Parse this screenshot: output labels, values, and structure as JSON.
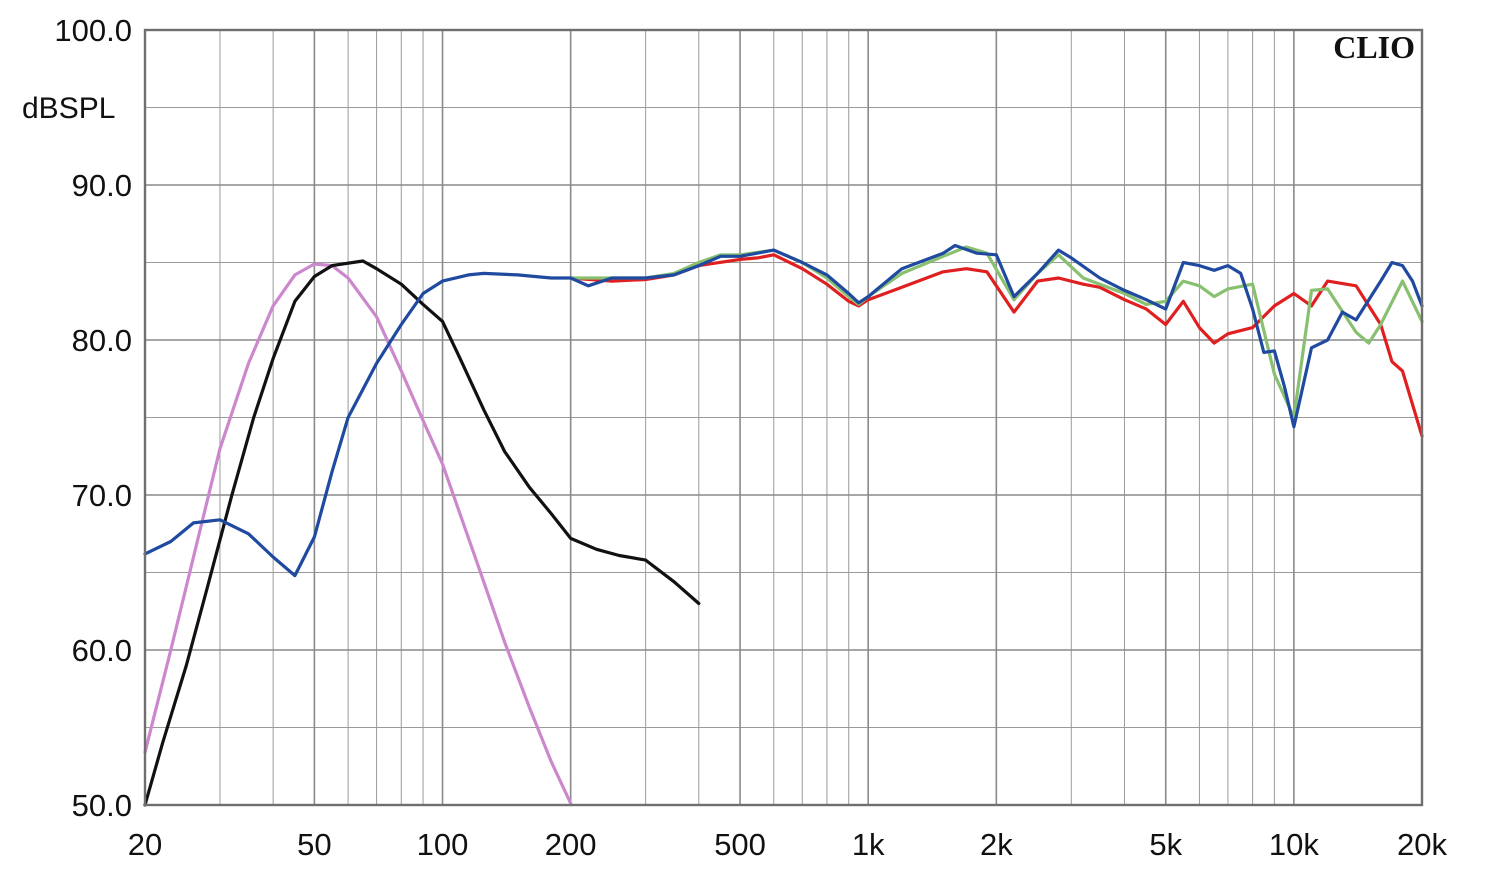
{
  "chart_data": {
    "type": "line",
    "brand": "CLIO",
    "ylabel": "dBSPL",
    "xlabel": "",
    "x_scale": "log",
    "xlim": [
      20,
      20000
    ],
    "ylim": [
      50,
      100
    ],
    "grid": true,
    "x_ticks": [
      {
        "value": 20,
        "label": "20"
      },
      {
        "value": 50,
        "label": "50"
      },
      {
        "value": 100,
        "label": "100"
      },
      {
        "value": 200,
        "label": "200"
      },
      {
        "value": 500,
        "label": "500"
      },
      {
        "value": 1000,
        "label": "1k"
      },
      {
        "value": 2000,
        "label": "2k"
      },
      {
        "value": 5000,
        "label": "5k"
      },
      {
        "value": 10000,
        "label": "10k"
      },
      {
        "value": 20000,
        "label": "20k"
      }
    ],
    "y_ticks": [
      {
        "value": 100,
        "label": "100.0"
      },
      {
        "value": 90,
        "label": "90.0"
      },
      {
        "value": 80,
        "label": "80.0"
      },
      {
        "value": 70,
        "label": "70.0"
      },
      {
        "value": 60,
        "label": "60.0"
      },
      {
        "value": 50,
        "label": "50.0"
      }
    ],
    "series": [
      {
        "color": "#cc88cc",
        "points": [
          [
            20,
            53.4
          ],
          [
            23,
            60
          ],
          [
            26,
            66
          ],
          [
            30,
            73
          ],
          [
            35,
            78.5
          ],
          [
            40,
            82.2
          ],
          [
            45,
            84.2
          ],
          [
            50,
            84.9
          ],
          [
            55,
            84.8
          ],
          [
            60,
            84
          ],
          [
            70,
            81.5
          ],
          [
            80,
            78
          ],
          [
            90,
            74.8
          ],
          [
            100,
            72
          ],
          [
            120,
            65.8
          ],
          [
            140,
            60.5
          ],
          [
            160,
            56.3
          ],
          [
            180,
            52.8
          ],
          [
            200,
            50.1
          ]
        ]
      },
      {
        "color": "#111111",
        "points": [
          [
            20,
            50
          ],
          [
            22,
            54
          ],
          [
            25,
            59
          ],
          [
            28,
            64
          ],
          [
            32,
            70
          ],
          [
            36,
            75
          ],
          [
            40,
            78.8
          ],
          [
            45,
            82.5
          ],
          [
            50,
            84.1
          ],
          [
            55,
            84.8
          ],
          [
            65,
            85.1
          ],
          [
            70,
            84.6
          ],
          [
            80,
            83.6
          ],
          [
            90,
            82.3
          ],
          [
            100,
            81.2
          ],
          [
            110,
            78.8
          ],
          [
            125,
            75.5
          ],
          [
            140,
            72.8
          ],
          [
            160,
            70.5
          ],
          [
            180,
            68.8
          ],
          [
            200,
            67.2
          ],
          [
            230,
            66.5
          ],
          [
            260,
            66.1
          ],
          [
            300,
            65.8
          ],
          [
            350,
            64.4
          ],
          [
            400,
            63
          ]
        ]
      },
      {
        "color": "#e02020",
        "points": [
          [
            200,
            84
          ],
          [
            250,
            83.8
          ],
          [
            300,
            83.9
          ],
          [
            350,
            84.2
          ],
          [
            400,
            84.8
          ],
          [
            500,
            85.2
          ],
          [
            550,
            85.3
          ],
          [
            600,
            85.5
          ],
          [
            700,
            84.6
          ],
          [
            800,
            83.6
          ],
          [
            900,
            82.5
          ],
          [
            950,
            82.2
          ],
          [
            1000,
            82.6
          ],
          [
            1200,
            83.4
          ],
          [
            1500,
            84.4
          ],
          [
            1700,
            84.6
          ],
          [
            1900,
            84.4
          ],
          [
            2200,
            81.8
          ],
          [
            2500,
            83.8
          ],
          [
            2800,
            84
          ],
          [
            3200,
            83.6
          ],
          [
            3500,
            83.4
          ],
          [
            4000,
            82.6
          ],
          [
            4500,
            82
          ],
          [
            5000,
            81
          ],
          [
            5500,
            82.5
          ],
          [
            6000,
            80.8
          ],
          [
            6500,
            79.8
          ],
          [
            7000,
            80.4
          ],
          [
            8000,
            80.8
          ],
          [
            9000,
            82.2
          ],
          [
            10000,
            83
          ],
          [
            11000,
            82.2
          ],
          [
            12000,
            83.8
          ],
          [
            14000,
            83.5
          ],
          [
            16000,
            81
          ],
          [
            17000,
            78.6
          ],
          [
            18000,
            78
          ],
          [
            20000,
            73.8
          ]
        ]
      },
      {
        "color": "#88c070",
        "points": [
          [
            200,
            84
          ],
          [
            250,
            84
          ],
          [
            300,
            84
          ],
          [
            350,
            84.3
          ],
          [
            400,
            85
          ],
          [
            450,
            85.5
          ],
          [
            500,
            85.5
          ],
          [
            600,
            85.8
          ],
          [
            700,
            85
          ],
          [
            800,
            84
          ],
          [
            900,
            82.8
          ],
          [
            950,
            82.3
          ],
          [
            1000,
            82.8
          ],
          [
            1200,
            84.3
          ],
          [
            1500,
            85.4
          ],
          [
            1700,
            86
          ],
          [
            1900,
            85.6
          ],
          [
            2200,
            82.6
          ],
          [
            2500,
            84.3
          ],
          [
            2800,
            85.5
          ],
          [
            3200,
            84
          ],
          [
            3500,
            83.6
          ],
          [
            4000,
            83
          ],
          [
            4500,
            82.3
          ],
          [
            5000,
            82.5
          ],
          [
            5500,
            83.8
          ],
          [
            6000,
            83.5
          ],
          [
            6500,
            82.8
          ],
          [
            7000,
            83.3
          ],
          [
            8000,
            83.6
          ],
          [
            9000,
            77.8
          ],
          [
            10000,
            75
          ],
          [
            11000,
            83.2
          ],
          [
            12000,
            83.3
          ],
          [
            14000,
            80.5
          ],
          [
            15000,
            79.8
          ],
          [
            16000,
            81
          ],
          [
            18000,
            83.8
          ],
          [
            20000,
            81.2
          ]
        ]
      },
      {
        "color": "#1f4aa0",
        "points": [
          [
            20,
            66.2
          ],
          [
            23,
            67
          ],
          [
            26,
            68.2
          ],
          [
            30,
            68.4
          ],
          [
            35,
            67.5
          ],
          [
            40,
            66
          ],
          [
            45,
            64.8
          ],
          [
            50,
            67.3
          ],
          [
            55,
            71.5
          ],
          [
            60,
            75
          ],
          [
            70,
            78.5
          ],
          [
            80,
            81
          ],
          [
            90,
            83
          ],
          [
            100,
            83.8
          ],
          [
            115,
            84.2
          ],
          [
            125,
            84.3
          ],
          [
            150,
            84.2
          ],
          [
            180,
            84
          ],
          [
            200,
            84
          ],
          [
            220,
            83.5
          ],
          [
            250,
            84
          ],
          [
            300,
            84
          ],
          [
            350,
            84.2
          ],
          [
            400,
            84.8
          ],
          [
            450,
            85.4
          ],
          [
            500,
            85.4
          ],
          [
            600,
            85.8
          ],
          [
            700,
            85
          ],
          [
            800,
            84.2
          ],
          [
            900,
            83
          ],
          [
            950,
            82.4
          ],
          [
            1000,
            82.8
          ],
          [
            1200,
            84.6
          ],
          [
            1500,
            85.6
          ],
          [
            1600,
            86.1
          ],
          [
            1800,
            85.6
          ],
          [
            2000,
            85.5
          ],
          [
            2200,
            82.8
          ],
          [
            2500,
            84.3
          ],
          [
            2800,
            85.8
          ],
          [
            3000,
            85.3
          ],
          [
            3500,
            84
          ],
          [
            4000,
            83.2
          ],
          [
            4500,
            82.6
          ],
          [
            5000,
            82
          ],
          [
            5500,
            85
          ],
          [
            6000,
            84.8
          ],
          [
            6500,
            84.5
          ],
          [
            7000,
            84.8
          ],
          [
            7500,
            84.3
          ],
          [
            8000,
            82
          ],
          [
            8500,
            79.2
          ],
          [
            9000,
            79.3
          ],
          [
            9500,
            77
          ],
          [
            10000,
            74.4
          ],
          [
            11000,
            79.5
          ],
          [
            12000,
            80
          ],
          [
            13000,
            81.8
          ],
          [
            14000,
            81.3
          ],
          [
            16000,
            83.8
          ],
          [
            17000,
            85
          ],
          [
            18000,
            84.8
          ],
          [
            19000,
            83.8
          ],
          [
            20000,
            82.2
          ]
        ]
      }
    ]
  }
}
